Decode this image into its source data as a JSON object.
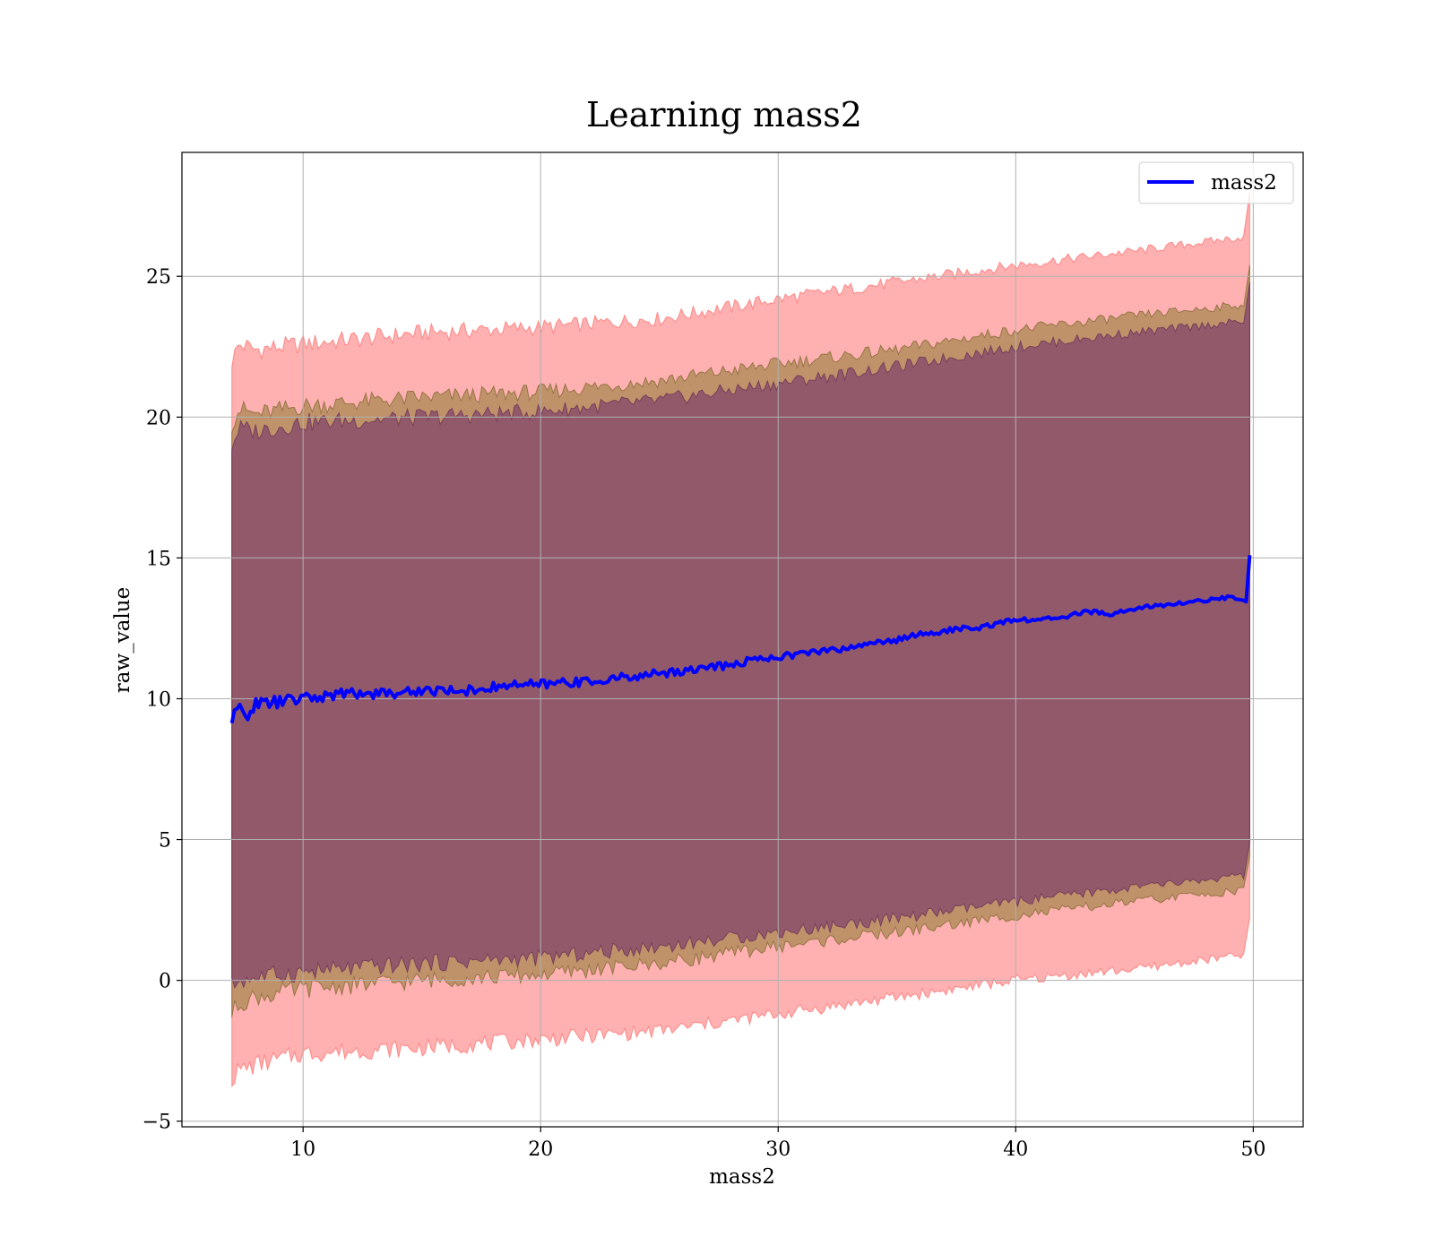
{
  "chart_data": {
    "type": "line",
    "title": "Learning mass2",
    "xlabel": "mass2",
    "ylabel": "raw_value",
    "xlim": [
      4.9,
      52.1
    ],
    "ylim": [
      -5.2,
      29.4
    ],
    "xticks": [
      10,
      20,
      30,
      40,
      50
    ],
    "yticks": [
      -5,
      0,
      5,
      10,
      15,
      20,
      25
    ],
    "xtick_labels": [
      "10",
      "20",
      "30",
      "40",
      "50"
    ],
    "ytick_labels": [
      "−5",
      "0",
      "5",
      "10",
      "15",
      "20",
      "25"
    ],
    "grid": true,
    "legend": {
      "placement": "upper right",
      "entries": [
        "mass2"
      ]
    },
    "colors": {
      "line": "#0000ff",
      "band_outer": "#ff0000",
      "band_middle": "#8b7a2f",
      "band_inner": "#6e2a6e",
      "grid": "#b0b0b0"
    },
    "series": [
      {
        "name": "mass2",
        "x": [
          7.0,
          7.3,
          7.6,
          8,
          9,
          10,
          11,
          12,
          13,
          14,
          15,
          16,
          17,
          18,
          19,
          20,
          21,
          22,
          23,
          24,
          25,
          26,
          27,
          28,
          29,
          30,
          31,
          32,
          33,
          34,
          35,
          36,
          37,
          38,
          39,
          40,
          41,
          42,
          43,
          44,
          45,
          46,
          47,
          48,
          49,
          49.7,
          49.85
        ],
        "y": [
          9.2,
          9.7,
          9.4,
          9.8,
          9.9,
          10.0,
          10.1,
          10.2,
          10.2,
          10.2,
          10.3,
          10.3,
          10.3,
          10.4,
          10.5,
          10.5,
          10.6,
          10.6,
          10.7,
          10.8,
          10.9,
          11.0,
          11.1,
          11.2,
          11.4,
          11.5,
          11.6,
          11.7,
          11.8,
          12.0,
          12.1,
          12.3,
          12.4,
          12.5,
          12.6,
          12.8,
          12.8,
          12.9,
          13.1,
          13.0,
          13.2,
          13.3,
          13.4,
          13.5,
          13.6,
          13.5,
          15.1
        ]
      }
    ],
    "bands": [
      {
        "x": [
          7.0,
          7.3,
          8,
          10,
          15,
          20,
          25,
          30,
          35,
          40,
          45,
          49.6
        ],
        "upper": [
          22.0,
          22.6,
          22.4,
          22.6,
          23.0,
          23.2,
          23.5,
          24.2,
          24.8,
          25.4,
          25.9,
          26.4
        ],
        "lower": [
          -3.5,
          -3.2,
          -3.0,
          -2.6,
          -2.4,
          -2.1,
          -1.8,
          -1.2,
          -0.6,
          0.0,
          0.4,
          0.9
        ]
      },
      {
        "x": [
          7.0,
          7.3,
          8,
          10,
          15,
          20,
          25,
          30,
          35,
          40,
          45,
          49.6
        ],
        "upper": [
          19.8,
          20.3,
          20.1,
          20.4,
          20.7,
          20.9,
          21.3,
          21.9,
          22.4,
          23.1,
          23.6,
          24.0
        ],
        "lower": [
          -1.2,
          -0.8,
          -0.6,
          -0.3,
          0.0,
          0.2,
          0.6,
          1.2,
          1.7,
          2.3,
          2.8,
          3.2
        ]
      },
      {
        "x": [
          7.0,
          7.3,
          8,
          10,
          15,
          20,
          25,
          30,
          35,
          40,
          45,
          49.6
        ],
        "upper": [
          19.0,
          19.6,
          19.5,
          19.8,
          20.0,
          20.2,
          20.6,
          21.2,
          21.8,
          22.5,
          23.0,
          23.4
        ],
        "lower": [
          -0.2,
          0.0,
          0.1,
          0.3,
          0.6,
          0.8,
          1.2,
          1.7,
          2.2,
          2.8,
          3.3,
          3.7
        ]
      }
    ]
  }
}
